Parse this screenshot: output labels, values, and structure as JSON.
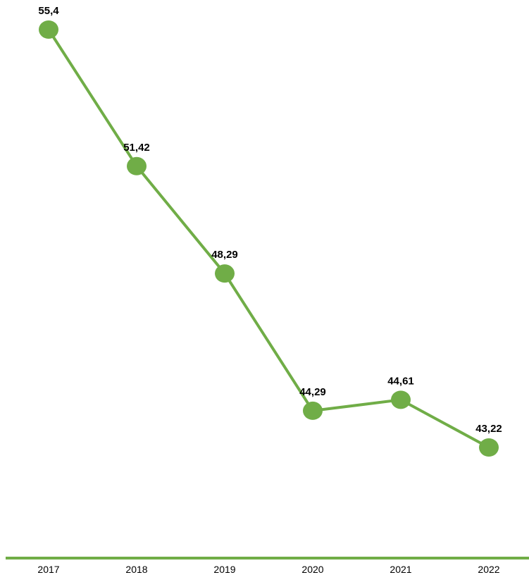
{
  "chart_data": {
    "type": "line",
    "categories": [
      "2017",
      "2018",
      "2019",
      "2020",
      "2021",
      "2022"
    ],
    "series": [
      {
        "values": [
          55.4,
          51.42,
          48.29,
          44.29,
          44.61,
          43.22
        ],
        "labels": [
          "55,4",
          "51,42",
          "48,29",
          "44,29",
          "44,61",
          "43,22"
        ]
      }
    ],
    "grid": false,
    "legend": "none"
  },
  "colors": {
    "series": "#70ad47",
    "axis": "#70ad47",
    "text": "#000000"
  }
}
